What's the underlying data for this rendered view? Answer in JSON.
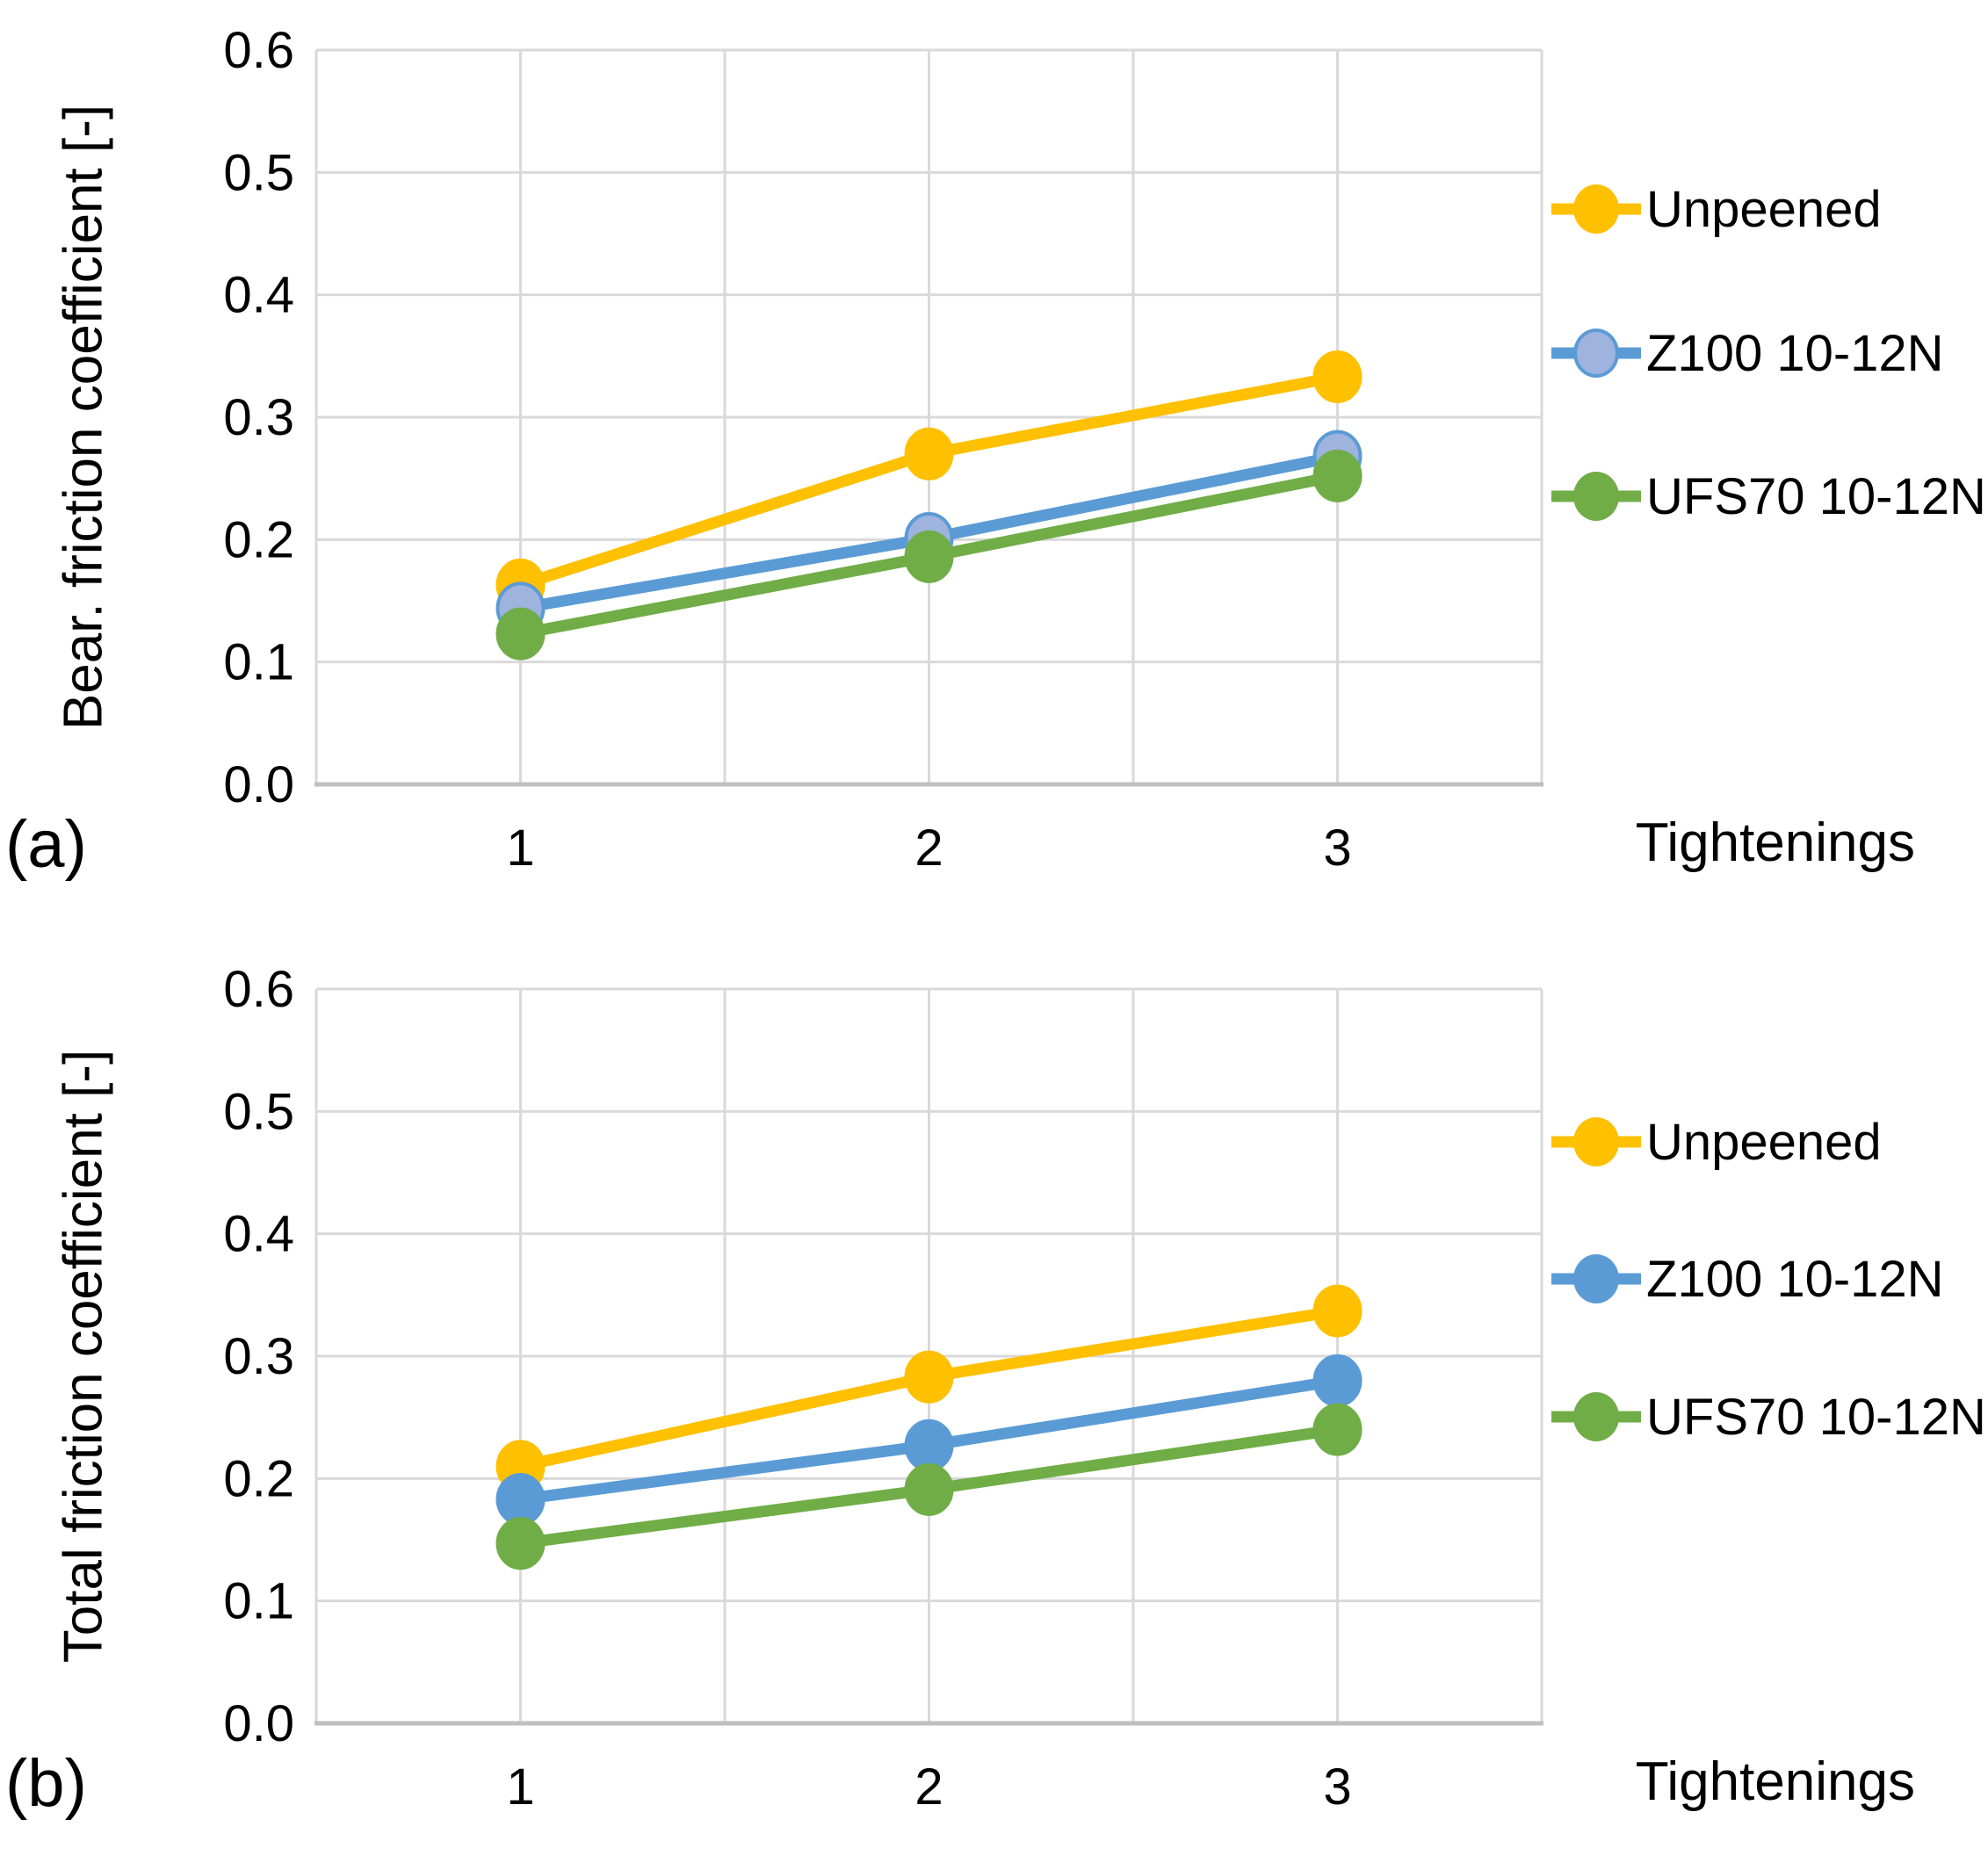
{
  "figure": {
    "background": "#FFFFFF"
  },
  "colors": {
    "gridline": "#D9D9D9",
    "axis_line": "#BFBFBF",
    "text": "#000000"
  },
  "chart_data": [
    {
      "id": "a",
      "type": "line",
      "panel_label": "(a)",
      "ylabel": "Bear. friction coefficient [-]",
      "xlabel": "Tightenings",
      "categories": [
        1,
        2,
        3
      ],
      "x_ticks": [
        "1",
        "2",
        "3"
      ],
      "y_ticks": [
        "0.6",
        "0.5",
        "0.4",
        "0.3",
        "0.2",
        "0.1",
        "0.0"
      ],
      "ylim": [
        0.0,
        0.6
      ],
      "xlim": [
        0.5,
        3.5
      ],
      "y_grid_step": 0.1,
      "x_grid_step": 0.5,
      "grid": true,
      "legend_position": "right",
      "series": [
        {
          "name": "Unpeened",
          "values": [
            0.163,
            0.27,
            0.333
          ],
          "color": "#FFC000",
          "marker_fill": "#FFC000",
          "marker_border": "#FFC000"
        },
        {
          "name": "Z100 10-12N",
          "values": [
            0.144,
            0.201,
            0.268
          ],
          "color": "#5B9BD5",
          "marker_fill": "#9FB3DF",
          "marker_border": "#5B9BD5"
        },
        {
          "name": "UFS70 10-12N",
          "values": [
            0.123,
            0.186,
            0.252
          ],
          "color": "#70AD47",
          "marker_fill": "#70AD47",
          "marker_border": "#70AD47"
        }
      ]
    },
    {
      "id": "b",
      "type": "line",
      "panel_label": "(b)",
      "ylabel": "Total friction coefficient [-]",
      "xlabel": "Tightenings",
      "categories": [
        1,
        2,
        3
      ],
      "x_ticks": [
        "1",
        "2",
        "3"
      ],
      "y_ticks": [
        "0.6",
        "0.5",
        "0.4",
        "0.3",
        "0.2",
        "0.1",
        "0.0"
      ],
      "ylim": [
        0.0,
        0.6
      ],
      "xlim": [
        0.5,
        3.5
      ],
      "y_grid_step": 0.1,
      "x_grid_step": 0.5,
      "grid": true,
      "legend_position": "right",
      "series": [
        {
          "name": "Unpeened",
          "values": [
            0.21,
            0.283,
            0.337
          ],
          "color": "#FFC000",
          "marker_fill": "#FFC000",
          "marker_border": "#FFC000"
        },
        {
          "name": "Z100 10-12N",
          "values": [
            0.183,
            0.227,
            0.28
          ],
          "color": "#5B9BD5",
          "marker_fill": "#5B9BD5",
          "marker_border": "#5B9BD5"
        },
        {
          "name": "UFS70 10-12N",
          "values": [
            0.147,
            0.191,
            0.24
          ],
          "color": "#70AD47",
          "marker_fill": "#70AD47",
          "marker_border": "#70AD47"
        }
      ]
    }
  ]
}
